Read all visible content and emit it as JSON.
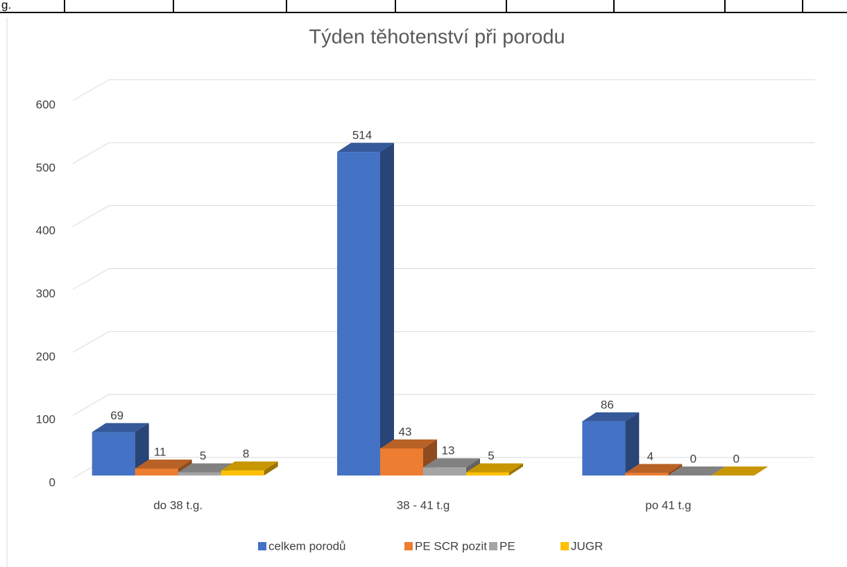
{
  "header_fragment": "g.",
  "chart_data": {
    "type": "bar3d",
    "title": "Týden těhotenství při porodu",
    "categories": [
      "do 38 t.g.",
      "38 - 41 t.g",
      "po 41 t.g"
    ],
    "series": [
      {
        "name": "celkem porodů",
        "color": "#4472c4",
        "values": [
          69,
          514,
          86
        ]
      },
      {
        "name": "PE SCR pozit",
        "color": "#ed7d31",
        "values": [
          11,
          43,
          4
        ]
      },
      {
        "name": "PE",
        "color": "#a5a5a5",
        "values": [
          5,
          13,
          0
        ]
      },
      {
        "name": "JUGR",
        "color": "#ffc000",
        "values": [
          8,
          5,
          0
        ]
      }
    ],
    "ylim": [
      0,
      600
    ],
    "yticks": [
      0,
      100,
      200,
      300,
      400,
      500,
      600
    ],
    "grid": true,
    "legend": "bottom"
  }
}
